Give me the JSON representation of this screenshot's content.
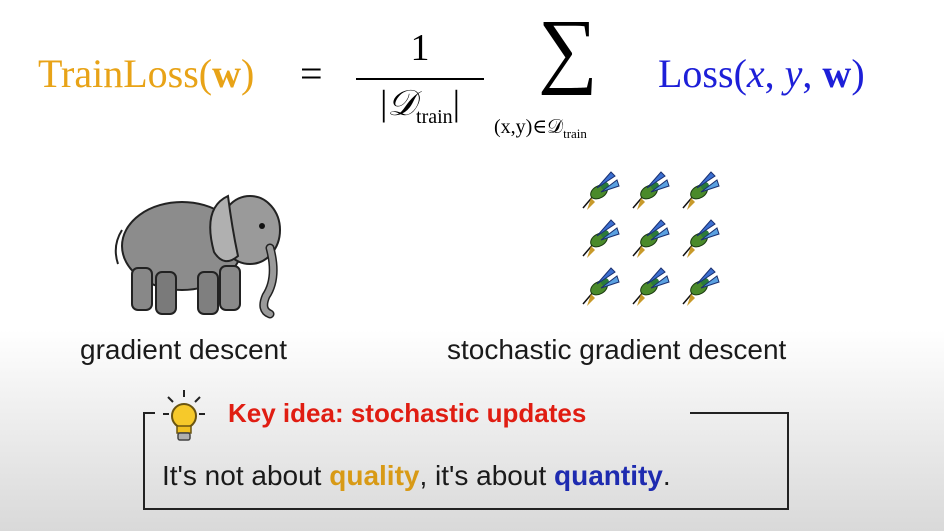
{
  "formula": {
    "lhs_name": "TrainLoss(",
    "lhs_arg": "w",
    "lhs_close": ")",
    "equals": "=",
    "numerator": "1",
    "denominator_open": "|",
    "denominator_set": "𝒟",
    "denominator_sub": "train",
    "denominator_close": "|",
    "sum_symbol": "∑",
    "sum_sub_main": "(x,y)∈𝒟",
    "sum_sub_sub": "train",
    "rhs_name": "Loss(",
    "rhs_x": "x",
    "rhs_sep1": ", ",
    "rhs_y": "y",
    "rhs_sep2": ", ",
    "rhs_w": "w",
    "rhs_close": ")"
  },
  "captions": {
    "left": "gradient descent",
    "right": "stochastic gradient descent"
  },
  "key_idea": {
    "title": "Key idea: stochastic updates",
    "body_1": "It's not about ",
    "kw_1": "quality",
    "body_2": ", it's about ",
    "kw_2": "quantity",
    "body_3": "."
  },
  "colors": {
    "lhs": "#e8a317",
    "rhs": "#1d1fd8",
    "key_title": "#e01d12",
    "quality": "#d89a16",
    "quantity": "#1e2bb0"
  },
  "icons": {
    "elephant": "elephant-illustration",
    "birds": "hummingbird-grid",
    "bulb": "lightbulb-icon"
  }
}
